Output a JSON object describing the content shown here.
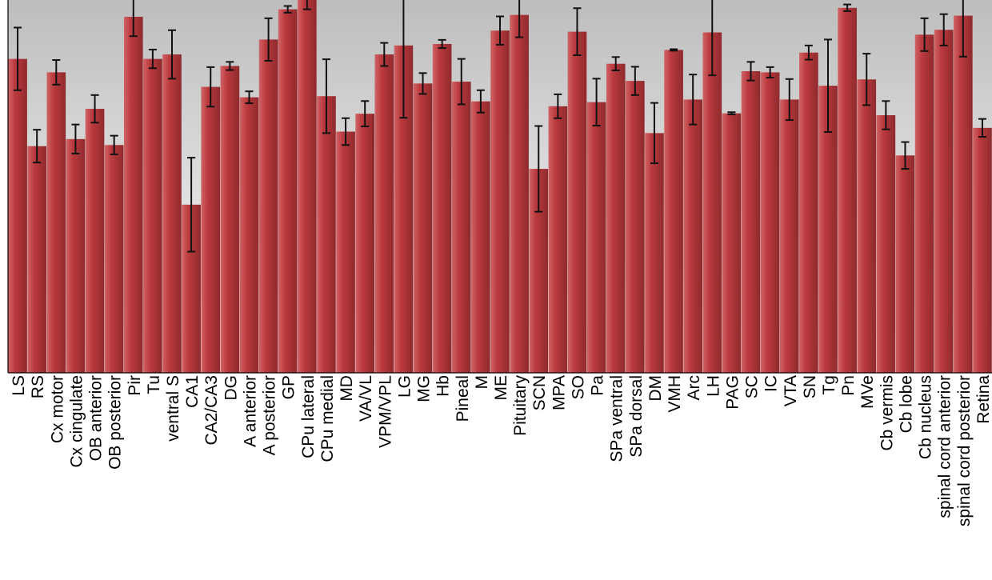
{
  "chart_data": {
    "type": "bar",
    "title": "",
    "xlabel": "",
    "ylabel": "",
    "ylim": [
      0,
      100
    ],
    "grid": false,
    "legend": "none",
    "colors": {
      "bar": "#b5363a",
      "bar_dark": "#8e2a2d",
      "bar_light": "#c95a5c",
      "errorbar": "#111111",
      "background_top": "#bdbdbd",
      "background_bottom": "#ffffff"
    },
    "categories": [
      "LS",
      "RS",
      "Cx motor",
      "Cx cingulate",
      "OB anterior",
      "OB posterior",
      "Pir",
      "Tu",
      "ventral S",
      "CA1",
      "CA2/CA3",
      "DG",
      "A anterior",
      "A posterior",
      "GP",
      "CPu lateral",
      "CPu medial",
      "MD",
      "VA/VL",
      "VPM/VPL",
      "LG",
      "MG",
      "Hb",
      "Pineal",
      "M",
      "ME",
      "Pituitary",
      "SCN",
      "MPA",
      "SO",
      "Pa",
      "SPa ventral",
      "SPa dorsal",
      "DM",
      "VMH",
      "Arc",
      "LH",
      "PAG",
      "SC",
      "IC",
      "VTA",
      "SN",
      "Tg",
      "Pn",
      "MVe",
      "Cb vermis",
      "Cb lobe",
      "Cb nucleus",
      "spinal cord anterior",
      "spinal cord posterior",
      "Retina"
    ],
    "values": [
      84.2,
      60.8,
      80.6,
      62.7,
      70.8,
      61.1,
      95.5,
      84.2,
      85.4,
      45.1,
      76.7,
      82.3,
      73.9,
      89.4,
      97.5,
      101.5,
      74.2,
      64.7,
      69.5,
      85.4,
      87.8,
      77.6,
      88.2,
      78.1,
      72.8,
      91.8,
      96.0,
      54.7,
      71.5,
      91.5,
      72.6,
      82.9,
      78.3,
      64.3,
      86.6,
      73.3,
      91.3,
      69.6,
      80.9,
      80.6,
      73.3,
      85.9,
      77.0,
      97.9,
      78.7,
      69.1,
      58.3,
      90.7,
      92.0,
      95.8,
      65.7
    ],
    "errors": [
      8.4,
      4.4,
      3.3,
      3.9,
      3.7,
      2.5,
      5.2,
      2.5,
      6.5,
      12.6,
      5.3,
      1.1,
      1.6,
      5.7,
      0.9,
      4.0,
      9.9,
      3.6,
      3.4,
      3.1,
      19.4,
      2.8,
      1.1,
      6.1,
      3.0,
      3.8,
      6.0,
      11.5,
      3.2,
      6.3,
      6.3,
      1.8,
      3.8,
      8.1,
      0.2,
      6.7,
      11.5,
      0.3,
      2.5,
      1.4,
      5.5,
      1.9,
      12.4,
      0.9,
      6.9,
      3.8,
      3.6,
      4.4,
      4.2,
      11.0,
      2.4
    ]
  }
}
